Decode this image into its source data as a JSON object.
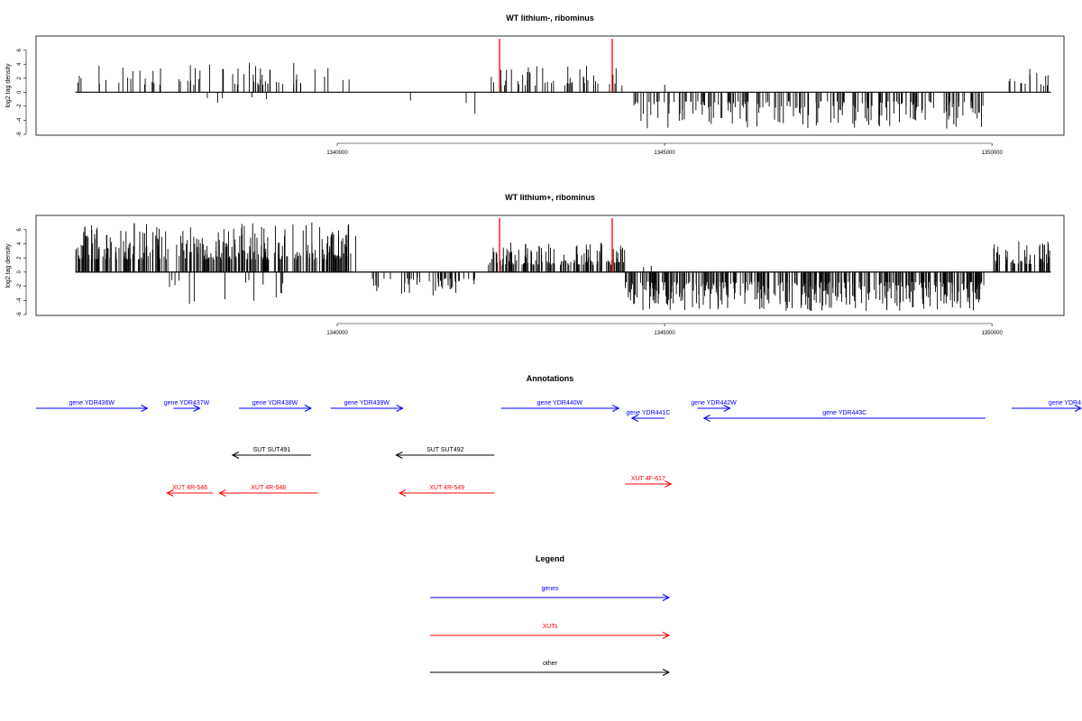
{
  "colors": {
    "gene": "#0000ff",
    "xut": "#ff0000",
    "other": "#000000",
    "marker": "#ff0000",
    "bars": "#000000"
  },
  "chart_data": [
    {
      "type": "bar",
      "title": "WT lithium-, ribominus",
      "ylabel": "log2 tag density",
      "xlim": [
        1335400,
        1351100
      ],
      "ylim": [
        -6,
        7.5
      ],
      "xticks": [
        1340000,
        1345000,
        1350000
      ],
      "xtick_labels": [
        "1340000",
        "1345000",
        "1350000"
      ],
      "yticks": [
        6,
        4,
        2,
        0,
        -2,
        -4,
        -6
      ],
      "ytick_labels": [
        "6",
        "4",
        "2",
        "0",
        "-2",
        "-4",
        "-6"
      ],
      "data_range": [
        1336000,
        1350900
      ],
      "markers": [
        1342480,
        1344200
      ],
      "segments": [
        {
          "start": 1336000,
          "end": 1340200,
          "min": 0,
          "max": 4.2,
          "density": 0.22
        },
        {
          "start": 1337500,
          "end": 1339600,
          "min": -2.5,
          "max": 0,
          "density": 0.03
        },
        {
          "start": 1341000,
          "end": 1342000,
          "min": -2.5,
          "max": 0,
          "density": 0.03
        },
        {
          "start": 1342000,
          "end": 1342200,
          "min": -4,
          "max": 0,
          "density": 0.06
        },
        {
          "start": 1342300,
          "end": 1344400,
          "min": 0,
          "max": 3.8,
          "density": 0.3
        },
        {
          "start": 1344500,
          "end": 1349900,
          "min": -5.2,
          "max": 0,
          "density": 0.5
        },
        {
          "start": 1344700,
          "end": 1345200,
          "min": 0,
          "max": 2.8,
          "density": 0.02
        },
        {
          "start": 1350200,
          "end": 1350900,
          "min": 0,
          "max": 3.5,
          "density": 0.3
        }
      ]
    },
    {
      "type": "bar",
      "title": "WT lithium+, ribominus",
      "ylabel": "log2 tag density",
      "xlim": [
        1335400,
        1351100
      ],
      "ylim": [
        -6,
        7.5
      ],
      "xticks": [
        1340000,
        1345000,
        1350000
      ],
      "xtick_labels": [
        "1340000",
        "1345000",
        "1350000"
      ],
      "yticks": [
        6,
        4,
        2,
        0,
        -2,
        -4,
        -6
      ],
      "ytick_labels": [
        "6",
        "4",
        "2",
        "0",
        "-2",
        "-4",
        "-6"
      ],
      "data_range": [
        1336000,
        1350900
      ],
      "markers": [
        1342480,
        1344200
      ],
      "segments": [
        {
          "start": 1336000,
          "end": 1340300,
          "min": 0,
          "max": 7.2,
          "density": 1.0
        },
        {
          "start": 1337200,
          "end": 1339200,
          "min": -4.5,
          "max": 0,
          "density": 0.1
        },
        {
          "start": 1340400,
          "end": 1342100,
          "min": -3.5,
          "max": 0,
          "density": 0.4
        },
        {
          "start": 1342300,
          "end": 1344400,
          "min": 0,
          "max": 4.2,
          "density": 0.9
        },
        {
          "start": 1344400,
          "end": 1349900,
          "min": -5.5,
          "max": 0,
          "density": 1.0
        },
        {
          "start": 1344600,
          "end": 1345200,
          "min": 0,
          "max": 2.8,
          "density": 0.05
        },
        {
          "start": 1350000,
          "end": 1350900,
          "min": 0,
          "max": 4.5,
          "density": 0.8
        }
      ]
    }
  ],
  "annotations": {
    "title": "Annotations",
    "xlim": [
      1335400,
      1351100
    ],
    "features": [
      {
        "label": "gene YDR436W",
        "start": 1335400,
        "end": 1337100,
        "strand": "+",
        "kind": "gene",
        "row": 0
      },
      {
        "label": "gene YDR437W",
        "start": 1337500,
        "end": 1337900,
        "strand": "+",
        "kind": "gene",
        "row": 0
      },
      {
        "label": "gene YDR438W",
        "start": 1338500,
        "end": 1339600,
        "strand": "+",
        "kind": "gene",
        "row": 0
      },
      {
        "label": "gene YDR439W",
        "start": 1339900,
        "end": 1341000,
        "strand": "+",
        "kind": "gene",
        "row": 0
      },
      {
        "label": "gene YDR440W",
        "start": 1342500,
        "end": 1344300,
        "strand": "+",
        "kind": "gene",
        "row": 0
      },
      {
        "label": "gene YDR441C",
        "start": 1344500,
        "end": 1345000,
        "strand": "-",
        "kind": "gene",
        "row": 1
      },
      {
        "label": "gene YDR442W",
        "start": 1345500,
        "end": 1346000,
        "strand": "+",
        "kind": "gene",
        "row": 0
      },
      {
        "label": "gene YDR443C",
        "start": 1345600,
        "end": 1349900,
        "strand": "-",
        "kind": "gene",
        "row": 1
      },
      {
        "label": "gene YDR4",
        "start": 1350300,
        "end": 1351400,
        "strand": "+",
        "kind": "gene",
        "row": 0
      },
      {
        "label": "SUT SUT491",
        "start": 1338400,
        "end": 1339600,
        "strand": "-",
        "kind": "other",
        "row": 2
      },
      {
        "label": "SUT SUT492",
        "start": 1340900,
        "end": 1342400,
        "strand": "-",
        "kind": "other",
        "row": 2
      },
      {
        "label": "XUT 4R-546",
        "start": 1337400,
        "end": 1338100,
        "strand": "-",
        "kind": "xut",
        "row": 3
      },
      {
        "label": "XUT 4R-548",
        "start": 1338200,
        "end": 1339700,
        "strand": "-",
        "kind": "xut",
        "row": 3
      },
      {
        "label": "XUT 4R-549",
        "start": 1340950,
        "end": 1342400,
        "strand": "-",
        "kind": "xut",
        "row": 3
      },
      {
        "label": "XUT 4F-617",
        "start": 1344400,
        "end": 1345100,
        "strand": "+",
        "kind": "xut",
        "row": 4
      }
    ]
  },
  "legend": {
    "title": "Legend",
    "items": [
      {
        "label": "genes",
        "kind": "gene"
      },
      {
        "label": "XUTs",
        "kind": "xut"
      },
      {
        "label": "other",
        "kind": "other"
      }
    ]
  }
}
